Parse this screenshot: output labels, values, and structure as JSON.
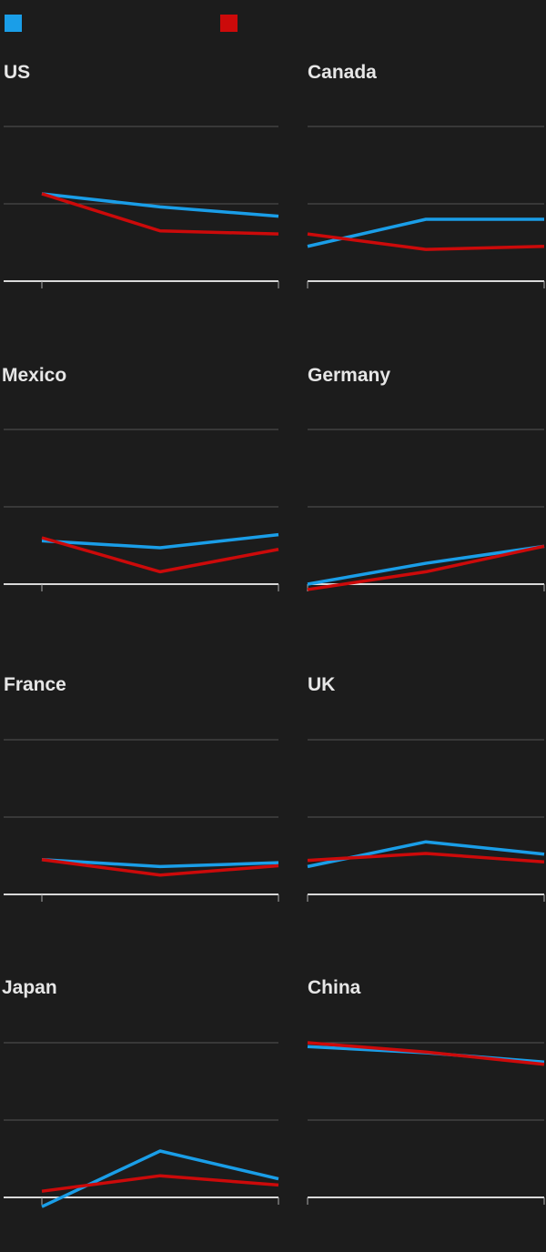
{
  "legend": [
    {
      "color": "#1a9ee8"
    },
    {
      "color": "#cc0a0a"
    }
  ],
  "chart_data": [
    {
      "type": "line",
      "title": "US",
      "x": [
        0,
        1,
        2
      ],
      "ylim": [
        0,
        2
      ],
      "grid": true,
      "series": [
        {
          "color": "#1a9ee8",
          "values": [
            1.13,
            0.96,
            0.84
          ]
        },
        {
          "color": "#cc0a0a",
          "values": [
            1.13,
            0.65,
            0.61
          ]
        }
      ]
    },
    {
      "type": "line",
      "title": "Canada",
      "x": [
        0,
        1,
        2
      ],
      "ylim": [
        0,
        2
      ],
      "grid": true,
      "series": [
        {
          "color": "#1a9ee8",
          "values": [
            0.45,
            0.8,
            0.8
          ]
        },
        {
          "color": "#cc0a0a",
          "values": [
            0.61,
            0.41,
            0.45
          ]
        }
      ]
    },
    {
      "type": "line",
      "title": "Mexico",
      "x": [
        0,
        1,
        2
      ],
      "ylim": [
        0,
        2
      ],
      "grid": true,
      "series": [
        {
          "color": "#1a9ee8",
          "values": [
            0.56,
            0.47,
            0.64
          ]
        },
        {
          "color": "#cc0a0a",
          "values": [
            0.6,
            0.16,
            0.45
          ]
        }
      ]
    },
    {
      "type": "line",
      "title": "Germany",
      "x": [
        0,
        1,
        2
      ],
      "ylim": [
        0,
        2
      ],
      "grid": true,
      "series": [
        {
          "color": "#1a9ee8",
          "values": [
            0.0,
            0.27,
            0.49
          ]
        },
        {
          "color": "#cc0a0a",
          "values": [
            -0.07,
            0.16,
            0.49
          ]
        }
      ]
    },
    {
      "type": "line",
      "title": "France",
      "x": [
        0,
        1,
        2
      ],
      "ylim": [
        0,
        2
      ],
      "grid": true,
      "series": [
        {
          "color": "#1a9ee8",
          "values": [
            0.45,
            0.36,
            0.41
          ]
        },
        {
          "color": "#cc0a0a",
          "values": [
            0.45,
            0.25,
            0.37
          ]
        }
      ]
    },
    {
      "type": "line",
      "title": "UK",
      "x": [
        0,
        1,
        2
      ],
      "ylim": [
        0,
        2
      ],
      "grid": true,
      "series": [
        {
          "color": "#1a9ee8",
          "values": [
            0.36,
            0.68,
            0.52
          ]
        },
        {
          "color": "#cc0a0a",
          "values": [
            0.44,
            0.53,
            0.42
          ]
        }
      ]
    },
    {
      "type": "line",
      "title": "Japan",
      "x": [
        0,
        1,
        2
      ],
      "ylim": [
        0,
        2
      ],
      "grid": true,
      "series": [
        {
          "color": "#1a9ee8",
          "values": [
            -0.12,
            0.6,
            0.24
          ]
        },
        {
          "color": "#cc0a0a",
          "values": [
            0.08,
            0.28,
            0.16
          ]
        }
      ]
    },
    {
      "type": "line",
      "title": "China",
      "x": [
        0,
        1,
        2
      ],
      "ylim": [
        0,
        2
      ],
      "grid": true,
      "series": [
        {
          "color": "#1a9ee8",
          "values": [
            1.95,
            1.87,
            1.75
          ]
        },
        {
          "color": "#cc0a0a",
          "values": [
            2.0,
            1.88,
            1.72
          ]
        }
      ]
    }
  ]
}
